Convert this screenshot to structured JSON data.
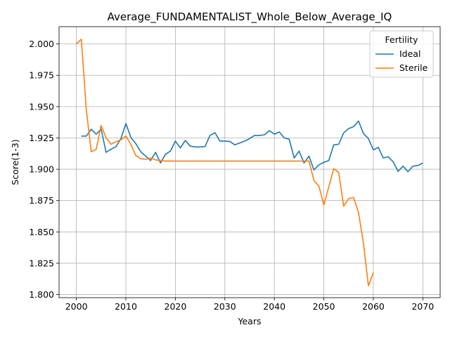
{
  "chart_data": {
    "type": "line",
    "title": "Average_FUNDAMENTALIST_Whole_Below_Average_IQ",
    "xlabel": "Years",
    "ylabel": "Score(1-3)",
    "xlim": [
      1996.5,
      2073.5
    ],
    "ylim": [
      1.7975,
      2.0138
    ],
    "xticks": [
      2000,
      2010,
      2020,
      2030,
      2040,
      2050,
      2060,
      2070
    ],
    "yticks": [
      1.8,
      1.825,
      1.85,
      1.875,
      1.9,
      1.925,
      1.95,
      1.975,
      2.0
    ],
    "ytick_labels": [
      "1.800",
      "1.825",
      "1.850",
      "1.875",
      "1.900",
      "1.925",
      "1.950",
      "1.975",
      "2.000"
    ],
    "grid": true,
    "legend": {
      "title": "Fertility",
      "placement": "top-right"
    },
    "series": [
      {
        "name": "Ideal",
        "color": "#1f77b4",
        "x": [
          2001,
          2002,
          2003,
          2004,
          2005,
          2006,
          2007,
          2008,
          2009,
          2010,
          2011,
          2012,
          2013,
          2014,
          2015,
          2016,
          2017,
          2018,
          2019,
          2020,
          2021,
          2022,
          2023,
          2024,
          2025,
          2026,
          2027,
          2028,
          2029,
          2030,
          2031,
          2032,
          2033,
          2034,
          2035,
          2036,
          2037,
          2038,
          2039,
          2040,
          2041,
          2042,
          2043,
          2044,
          2045,
          2046,
          2047,
          2048,
          2049,
          2050,
          2051,
          2052,
          2053,
          2054,
          2055,
          2056,
          2057,
          2058,
          2059,
          2060,
          2061,
          2062,
          2063,
          2064,
          2065,
          2066,
          2067,
          2068,
          2069,
          2070
        ],
        "y": [
          1.9265,
          1.9265,
          1.932,
          1.928,
          1.932,
          1.9135,
          1.916,
          1.918,
          1.9245,
          1.9365,
          1.9255,
          1.9205,
          1.914,
          1.9105,
          1.907,
          1.9135,
          1.905,
          1.912,
          1.9145,
          1.9225,
          1.917,
          1.923,
          1.9185,
          1.9178,
          1.9178,
          1.9182,
          1.927,
          1.9292,
          1.9225,
          1.9225,
          1.9222,
          1.9195,
          1.921,
          1.9225,
          1.9245,
          1.927,
          1.927,
          1.9275,
          1.9308,
          1.928,
          1.9298,
          1.925,
          1.924,
          1.909,
          1.9145,
          1.905,
          1.9105,
          1.8995,
          1.9035,
          1.9055,
          1.907,
          1.9195,
          1.92,
          1.929,
          1.9325,
          1.934,
          1.9385,
          1.9285,
          1.9245,
          1.9155,
          1.9175,
          1.909,
          1.91,
          1.906,
          1.8983,
          1.9025,
          1.898,
          1.9025,
          1.903,
          1.905
        ]
      },
      {
        "name": "Sterile",
        "color": "#ff7f0e",
        "x": [
          2000,
          2001,
          2002,
          2003,
          2004,
          2005,
          2006,
          2007,
          2008,
          2009,
          2010,
          2011,
          2012,
          2013,
          2014,
          2015,
          2016,
          2017,
          2018,
          2019,
          2020,
          2021,
          2022,
          2023,
          2024,
          2025,
          2026,
          2027,
          2028,
          2029,
          2030,
          2031,
          2032,
          2033,
          2034,
          2035,
          2036,
          2037,
          2038,
          2039,
          2040,
          2041,
          2042,
          2043,
          2044,
          2045,
          2046,
          2047,
          2048,
          2049,
          2050,
          2051,
          2052,
          2053,
          2054,
          2055,
          2056,
          2057,
          2058,
          2059,
          2060
        ],
        "y": [
          2.0,
          2.0038,
          1.9475,
          1.914,
          1.916,
          1.935,
          1.925,
          1.92,
          1.922,
          1.9235,
          1.9265,
          1.92,
          1.911,
          1.9085,
          1.908,
          1.909,
          1.9075,
          1.907,
          1.9065,
          1.9065,
          1.9065,
          1.9065,
          1.9065,
          1.9065,
          1.9065,
          1.9065,
          1.9065,
          1.9065,
          1.9065,
          1.9065,
          1.9065,
          1.9065,
          1.9065,
          1.9065,
          1.9065,
          1.9065,
          1.9065,
          1.9065,
          1.9065,
          1.9065,
          1.9065,
          1.9065,
          1.9065,
          1.9065,
          1.9065,
          1.9065,
          1.9065,
          1.9065,
          1.891,
          1.8865,
          1.8715,
          1.886,
          1.9005,
          1.8975,
          1.8705,
          1.8765,
          1.8775,
          1.8655,
          1.841,
          1.807,
          1.8175
        ]
      }
    ]
  }
}
